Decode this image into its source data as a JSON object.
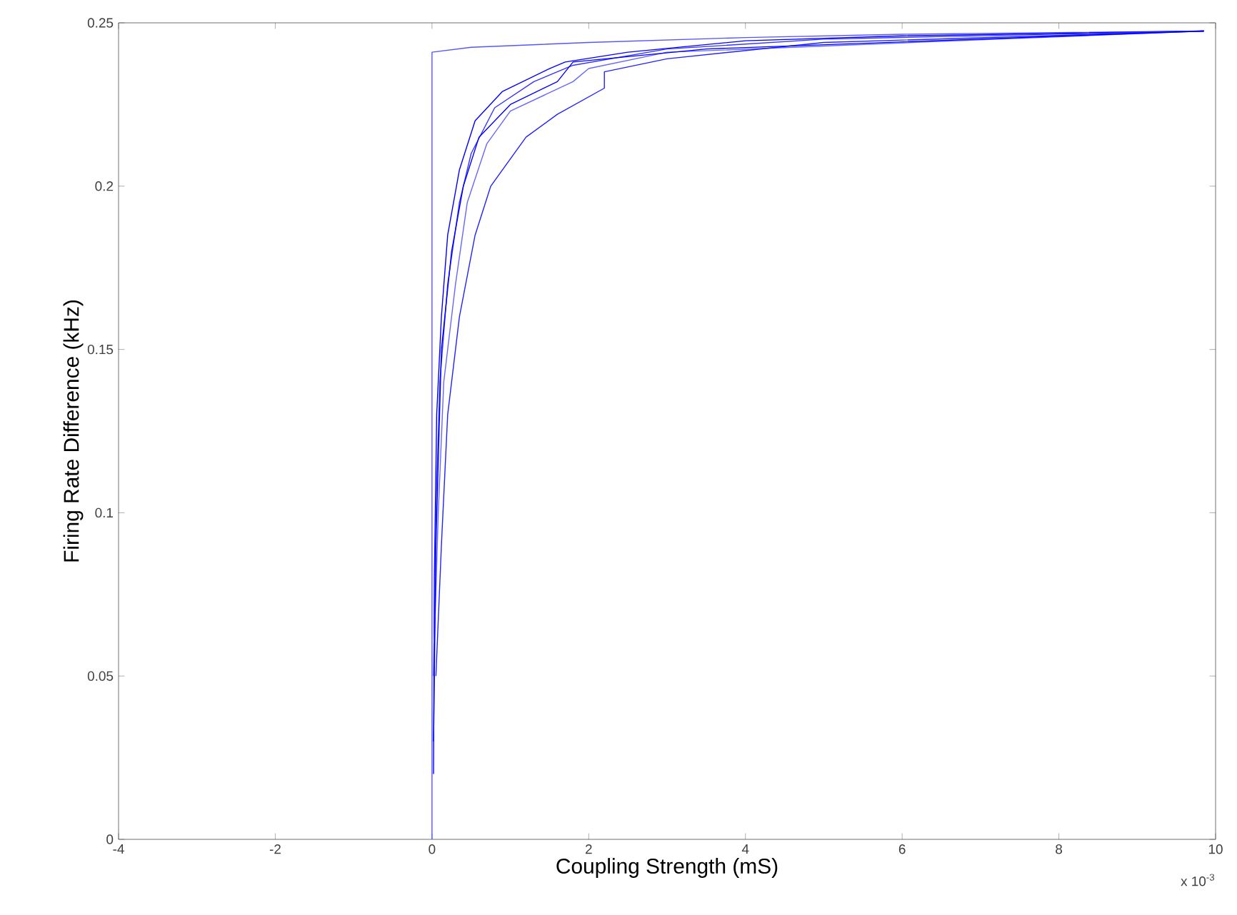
{
  "chart_data": {
    "type": "line",
    "xlabel": "Coupling Strength (mS)",
    "ylabel": "Firing Rate Difference (kHz)",
    "annotations": [
      "x 10$^{-3}$"
    ],
    "xlim": [
      -4,
      10
    ],
    "ylim": [
      0,
      0.25
    ],
    "xticks": [
      -4,
      -2,
      0,
      2,
      4,
      6,
      8,
      10
    ],
    "yticks": [
      0,
      0.05,
      0.1,
      0.15,
      0.2,
      0.25
    ],
    "grid": false,
    "marker": "none",
    "line_style": "solid",
    "series": [
      {
        "color": "#5555ff",
        "x": [
          0,
          0,
          0.5,
          2,
          4,
          6,
          9.85
        ],
        "values": [
          0,
          0.241,
          0.2425,
          0.244,
          0.2455,
          0.2465,
          0.2475
        ]
      },
      {
        "color": "#0000ff",
        "x": [
          0.02,
          0.03,
          0.06,
          0.12,
          0.2,
          0.35,
          0.55,
          0.9,
          1.5,
          1.7,
          2.5,
          4,
          6,
          9.85
        ],
        "values": [
          0.02,
          0.08,
          0.13,
          0.16,
          0.185,
          0.205,
          0.22,
          0.229,
          0.236,
          0.238,
          0.241,
          0.2445,
          0.246,
          0.2475
        ]
      },
      {
        "color": "#3333ff",
        "x": [
          0.02,
          0.05,
          0.1,
          0.2,
          0.35,
          0.5,
          0.8,
          1.3,
          1.8,
          3,
          5,
          9.85
        ],
        "values": [
          0.05,
          0.1,
          0.14,
          0.17,
          0.195,
          0.21,
          0.224,
          0.232,
          0.237,
          0.242,
          0.245,
          0.2475
        ]
      },
      {
        "color": "#6666ff",
        "x": [
          0.03,
          0.08,
          0.15,
          0.3,
          0.45,
          0.7,
          1.0,
          1.8,
          2.0,
          3,
          9.85
        ],
        "values": [
          0.06,
          0.1,
          0.14,
          0.17,
          0.195,
          0.213,
          0.223,
          0.232,
          0.236,
          0.241,
          0.2475
        ]
      },
      {
        "color": "#2222ff",
        "x": [
          0.05,
          0.12,
          0.2,
          0.35,
          0.55,
          0.75,
          1.2,
          1.6,
          2.2,
          2.2,
          3,
          5,
          9.85
        ],
        "values": [
          0.05,
          0.09,
          0.13,
          0.16,
          0.185,
          0.2,
          0.215,
          0.222,
          0.23,
          0.235,
          0.239,
          0.244,
          0.2475
        ]
      },
      {
        "color": "#0000ff",
        "x": [
          0.02,
          0.05,
          0.12,
          0.25,
          0.4,
          0.6,
          1.0,
          1.6,
          1.8,
          3.5,
          9.85
        ],
        "values": [
          0.03,
          0.09,
          0.15,
          0.18,
          0.2,
          0.215,
          0.225,
          0.232,
          0.238,
          0.242,
          0.2475
        ]
      }
    ]
  }
}
